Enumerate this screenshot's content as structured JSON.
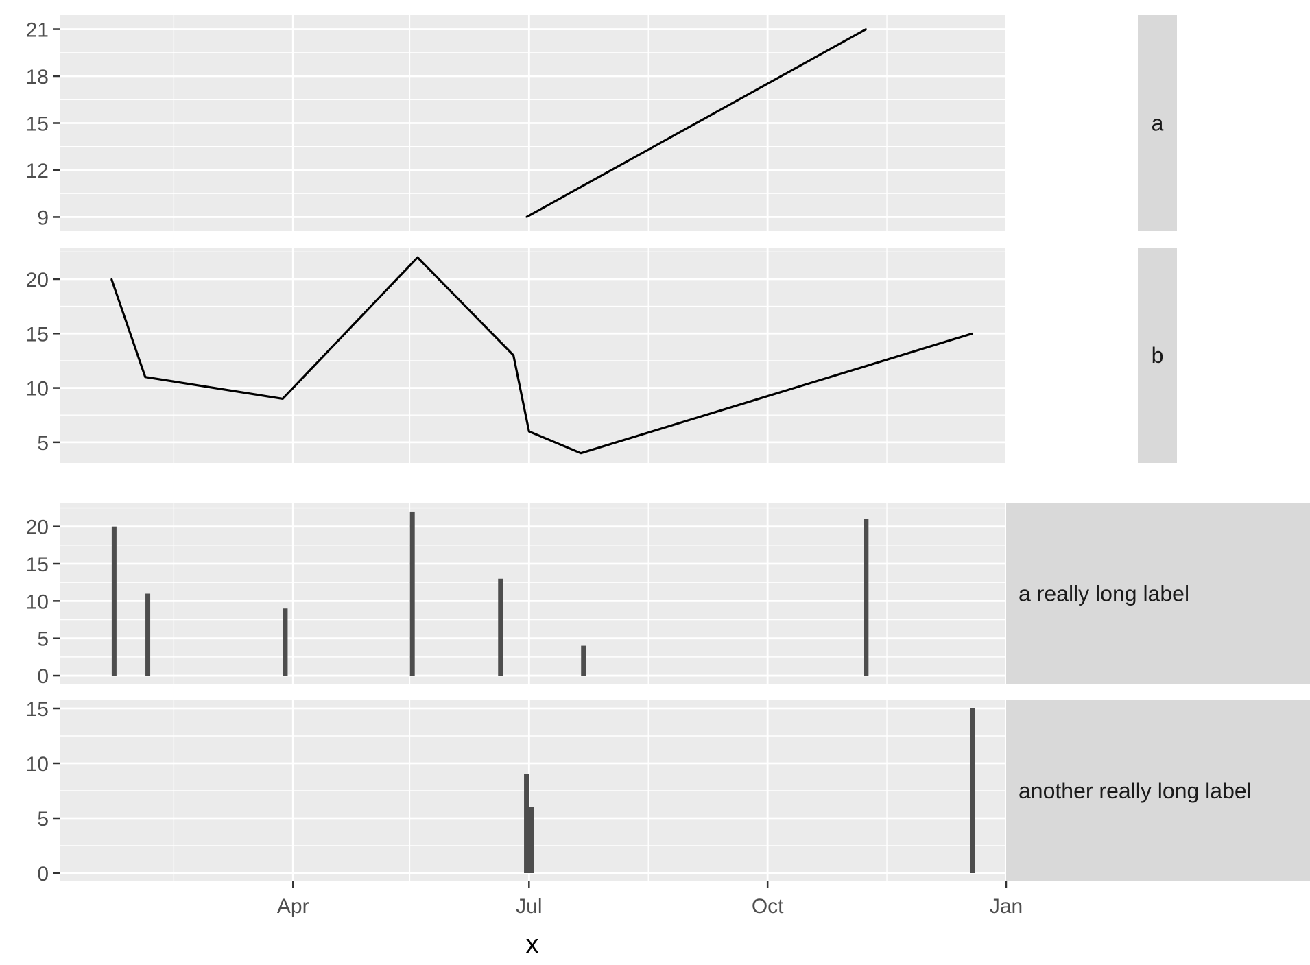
{
  "chart_data": {
    "type": "faceted",
    "xlabel": "x",
    "x_ticks": [
      "Apr",
      "Jul",
      "Oct",
      "Jan"
    ],
    "x_tick_dates": [
      "2024-04-01",
      "2024-07-01",
      "2024-10-01",
      "2025-01-01"
    ],
    "x_range": [
      "2024-01-02",
      "2025-01-01"
    ],
    "grid": true,
    "panels": [
      {
        "id": "a",
        "strip": "a",
        "type": "line",
        "ylim": [
          8.1,
          21.9
        ],
        "y_ticks": [
          "9",
          "12",
          "15",
          "18",
          "21"
        ],
        "y_tick_values": [
          9,
          12,
          15,
          18,
          21
        ],
        "x": [
          "2024-06-30",
          "2024-11-08"
        ],
        "values": [
          9,
          21
        ]
      },
      {
        "id": "b",
        "strip": "b",
        "type": "line",
        "ylim": [
          3.1,
          22.9
        ],
        "y_ticks": [
          "5",
          "10",
          "15",
          "20"
        ],
        "y_tick_values": [
          5,
          10,
          15,
          20
        ],
        "x": [
          "2024-01-22",
          "2024-02-04",
          "2024-03-28",
          "2024-05-19",
          "2024-06-25",
          "2024-07-01",
          "2024-07-21",
          "2024-12-19"
        ],
        "values": [
          20,
          11,
          9,
          22,
          13,
          6,
          4,
          15
        ]
      },
      {
        "id": "a-long",
        "strip": "a really long label",
        "type": "bar",
        "ylim": [
          -1.1,
          23.1
        ],
        "y_ticks": [
          "0",
          "5",
          "10",
          "15",
          "20"
        ],
        "y_tick_values": [
          0,
          5,
          10,
          15,
          20
        ],
        "x": [
          "2024-01-23",
          "2024-02-05",
          "2024-03-29",
          "2024-05-17",
          "2024-06-20",
          "2024-07-22",
          "2024-11-08"
        ],
        "values": [
          20,
          11,
          9,
          22,
          13,
          4,
          21
        ]
      },
      {
        "id": "b-long",
        "strip": "another really long label",
        "type": "bar",
        "ylim": [
          -0.75,
          15.75
        ],
        "y_ticks": [
          "0",
          "5",
          "10",
          "15"
        ],
        "y_tick_values": [
          0,
          5,
          10,
          15
        ],
        "x": [
          "2024-06-30",
          "2024-07-02",
          "2024-12-19"
        ],
        "values": [
          9,
          6,
          15
        ]
      }
    ]
  }
}
